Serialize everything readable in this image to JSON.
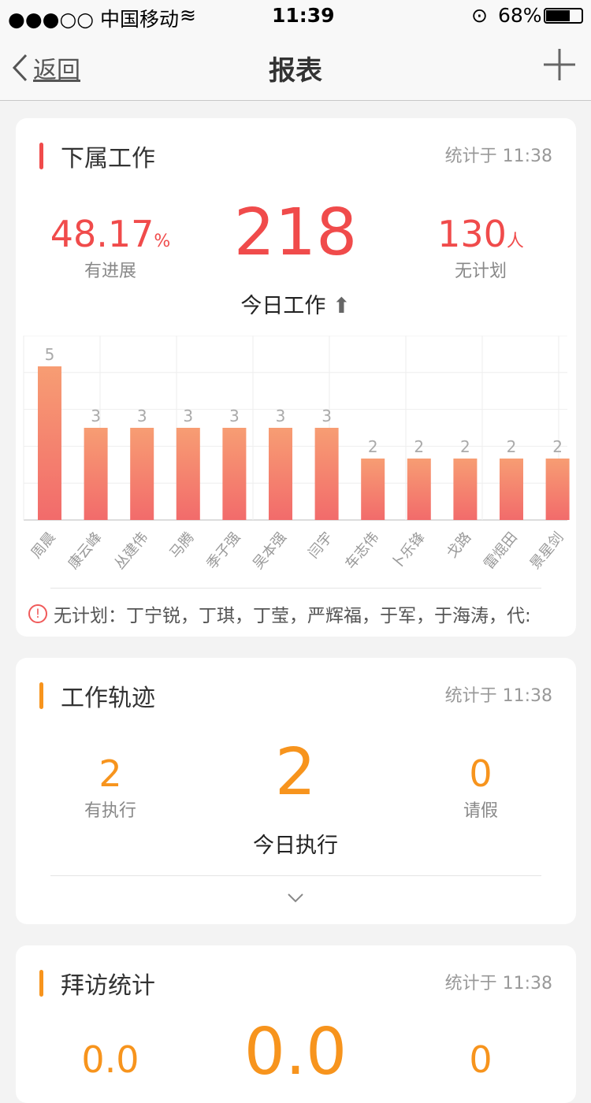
{
  "status_bar": {
    "carrier": "●●●○○ 中国移动",
    "time": "11:39",
    "battery": "68%"
  },
  "nav": {
    "back_label": "返回",
    "title": "报表"
  },
  "colors": {
    "red": "#f04b4b",
    "orange": "#f7941d",
    "bar_top": "#f79d73",
    "bar_bottom": "#f26b6b"
  },
  "work": {
    "title": "下属工作",
    "stamp": "统计于 11:38",
    "progress_value": "48.17",
    "progress_unit": "%",
    "progress_label": "有进展",
    "today_value": "218",
    "today_label": "今日工作",
    "noplan_value": "130",
    "noplan_unit": "人",
    "noplan_label": "无计划",
    "warning": "无计划：丁宁锐，丁琪，丁莹，严辉福，于军，于海涛，代:"
  },
  "chart_data": {
    "type": "bar",
    "categories": [
      "周晨",
      "康云峰",
      "丛建伟",
      "马腾",
      "季子强",
      "吴本强",
      "闫宇",
      "车志伟",
      "卜乐锋",
      "戈路",
      "雷焜田",
      "景星剑"
    ],
    "values": [
      5,
      3,
      3,
      3,
      3,
      3,
      3,
      2,
      2,
      2,
      2,
      2
    ],
    "ylim": [
      0,
      6
    ],
    "grid": true
  },
  "track": {
    "title": "工作轨迹",
    "stamp": "统计于 11:38",
    "exec_value": "2",
    "exec_label": "有执行",
    "today_value": "2",
    "today_label": "今日执行",
    "leave_value": "0",
    "leave_label": "请假"
  },
  "visit": {
    "title": "拜访统计",
    "stamp": "统计于 11:38",
    "left_value": "0.0",
    "center_value": "0.0",
    "right_value": "0"
  }
}
